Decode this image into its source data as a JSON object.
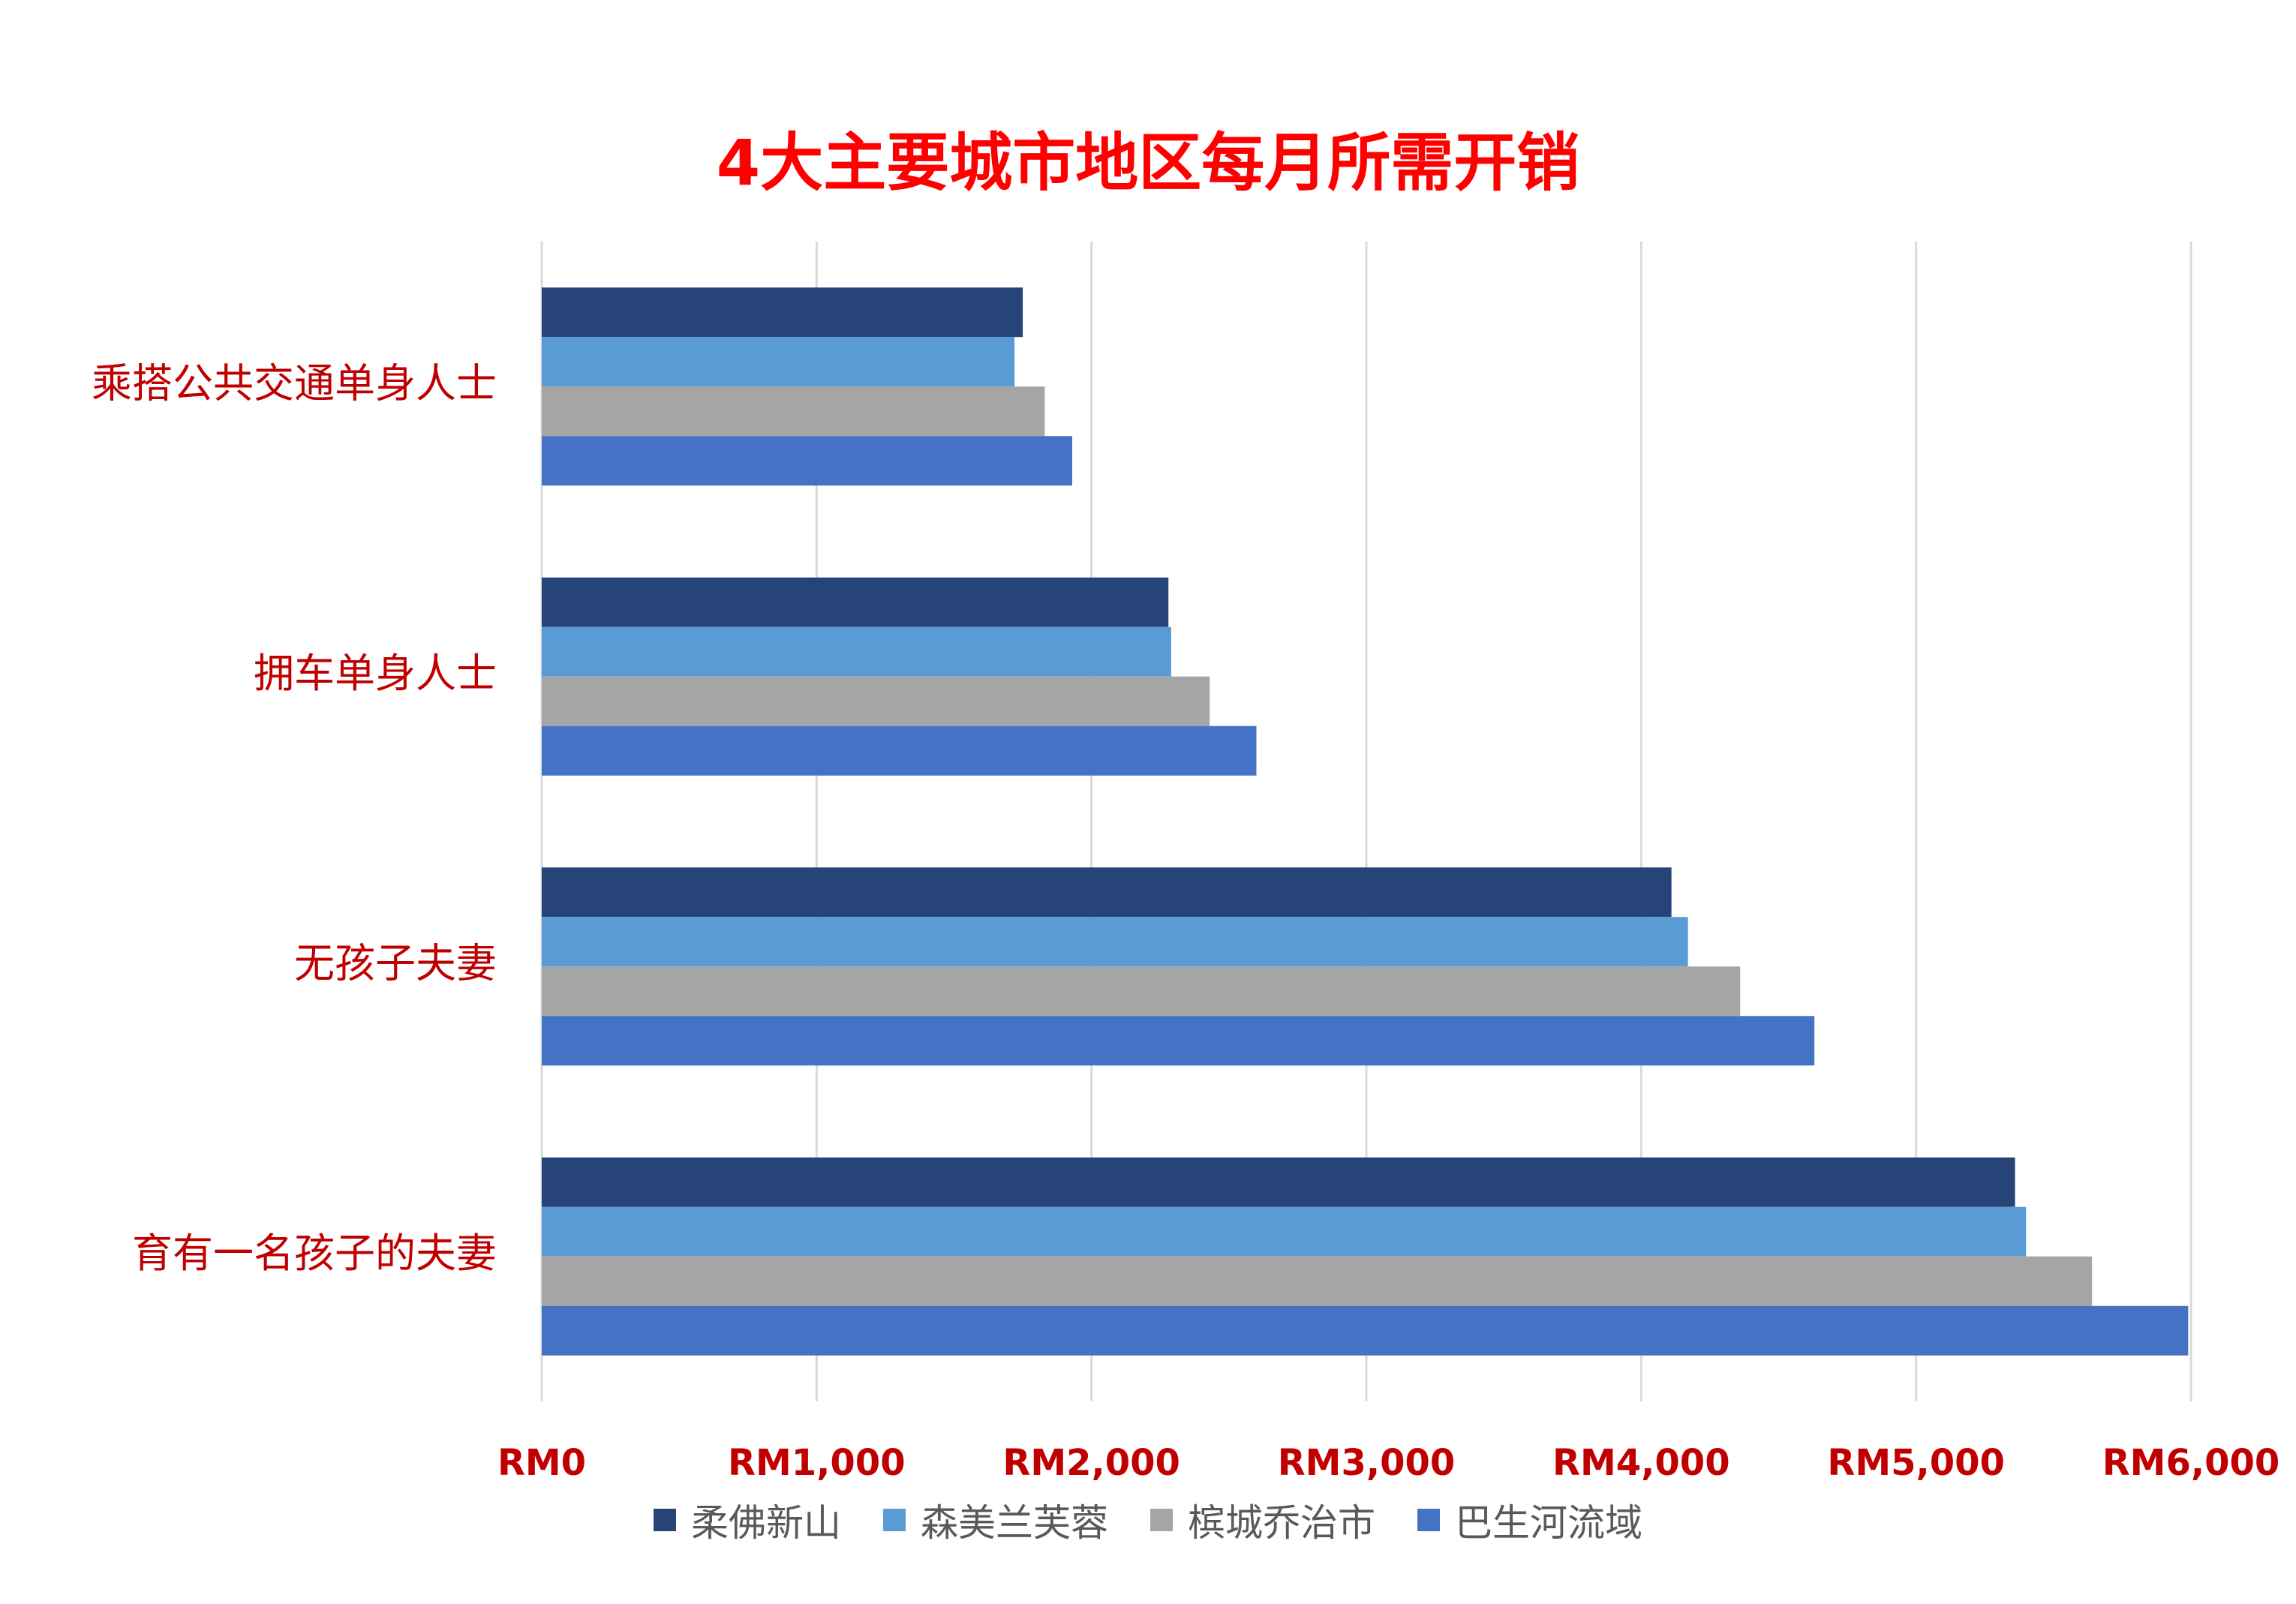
{
  "chart_data": {
    "type": "bar",
    "orientation": "horizontal",
    "title": "4大主要城市地区每月所需开销",
    "categories": [
      "乘搭公共交通单身人士",
      "拥车单身人士",
      "无孩子夫妻",
      "育有一名孩子的夫妻"
    ],
    "series": [
      {
        "name": "柔佛新山",
        "color": "#264478",
        "values": [
          1750,
          2280,
          4110,
          5360
        ]
      },
      {
        "name": "森美兰芙蓉",
        "color": "#5B9BD5",
        "values": [
          1720,
          2290,
          4170,
          5400
        ]
      },
      {
        "name": "槟城乔治市",
        "color": "#A5A5A5",
        "values": [
          1830,
          2430,
          4360,
          5640
        ]
      },
      {
        "name": "巴生河流域",
        "color": "#4472C4",
        "values": [
          1930,
          2600,
          4630,
          5990
        ]
      }
    ],
    "x_ticks": [
      "RM0",
      "RM1,000",
      "RM2,000",
      "RM3,000",
      "RM4,000",
      "RM5,000",
      "RM6,000"
    ],
    "xlim": [
      0,
      6000
    ],
    "grid": true,
    "legend_position": "bottom"
  },
  "colors": {
    "title": "#FF0000",
    "category_label": "#C00000",
    "tick_label": "#C00000",
    "gridline": "#D9D9D9"
  }
}
